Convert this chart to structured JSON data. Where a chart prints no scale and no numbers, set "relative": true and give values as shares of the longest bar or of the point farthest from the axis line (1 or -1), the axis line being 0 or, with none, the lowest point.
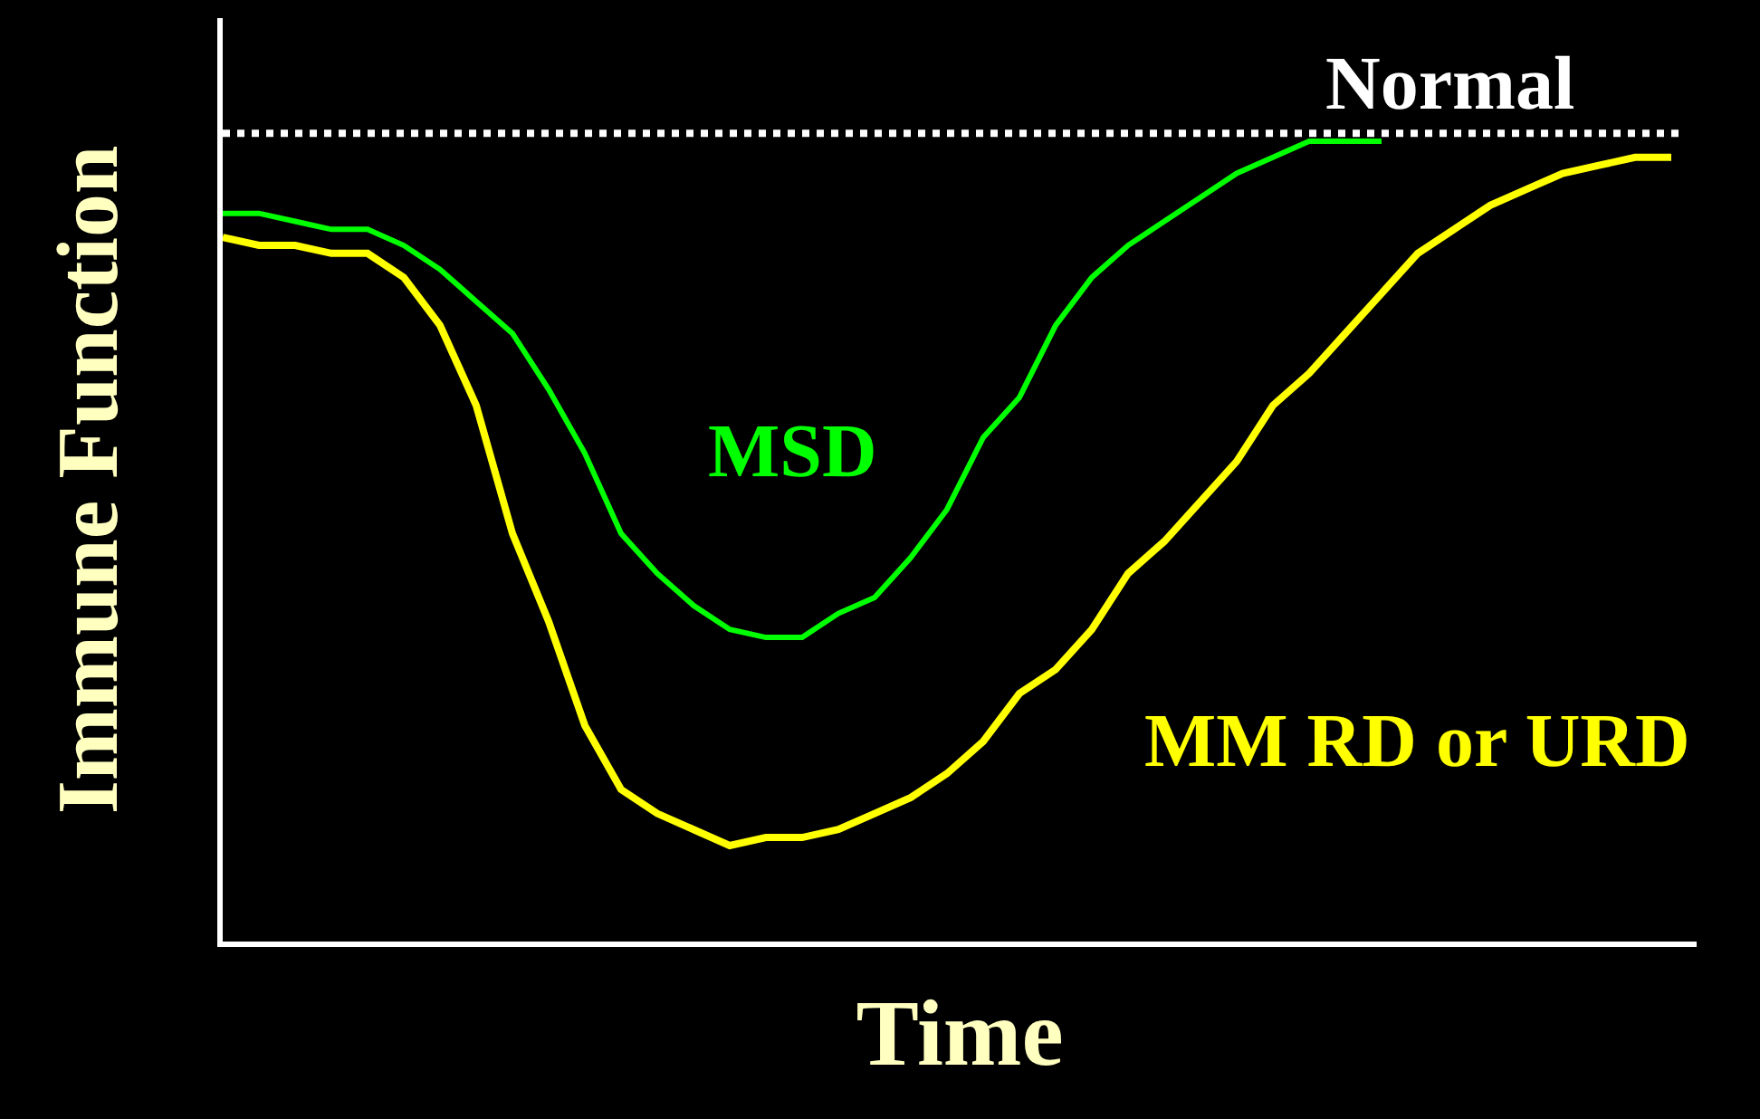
{
  "chart_data": {
    "type": "line",
    "relative": true,
    "xlabel": "Time",
    "ylabel": "Immune Function",
    "grid": false,
    "categories": [
      null,
      null,
      null,
      null,
      null,
      null,
      null,
      null,
      null,
      null,
      null,
      null,
      null,
      null,
      null,
      null,
      null,
      null,
      null,
      null,
      null,
      null,
      null,
      null,
      null,
      null,
      null,
      null,
      null,
      null,
      null,
      null,
      null,
      null,
      null,
      null,
      null,
      null,
      null,
      null,
      null
    ],
    "series": [
      {
        "name": "MSD",
        "color": "#00ff00",
        "values": [
          0.91,
          0.91,
          0.9,
          0.89,
          0.89,
          0.87,
          0.84,
          0.8,
          0.76,
          0.69,
          0.61,
          0.51,
          0.46,
          0.42,
          0.39,
          0.38,
          0.38,
          0.41,
          0.43,
          0.48,
          0.54,
          0.63,
          0.68,
          0.77,
          0.83,
          0.87,
          0.9,
          0.93,
          0.96,
          0.98,
          1.0,
          1.0,
          1.0,
          null,
          null,
          null,
          null,
          null,
          null,
          null,
          null
        ]
      },
      {
        "name": "MM RD or URD",
        "color": "#ffff00",
        "values": [
          0.88,
          0.87,
          0.87,
          0.86,
          0.86,
          0.83,
          0.77,
          0.67,
          0.51,
          0.4,
          0.27,
          0.19,
          0.16,
          0.14,
          0.12,
          0.13,
          0.13,
          0.14,
          0.16,
          0.18,
          0.21,
          0.25,
          0.31,
          0.34,
          0.39,
          0.46,
          0.5,
          0.55,
          0.6,
          0.67,
          0.71,
          0.76,
          0.81,
          0.86,
          0.89,
          0.92,
          0.94,
          0.96,
          0.97,
          0.98,
          0.98
        ]
      }
    ],
    "ref_lines": [
      {
        "axis": "y",
        "value": 1.01,
        "label": "Normal",
        "color": "#ffffff",
        "line_style": "dotted"
      }
    ]
  }
}
